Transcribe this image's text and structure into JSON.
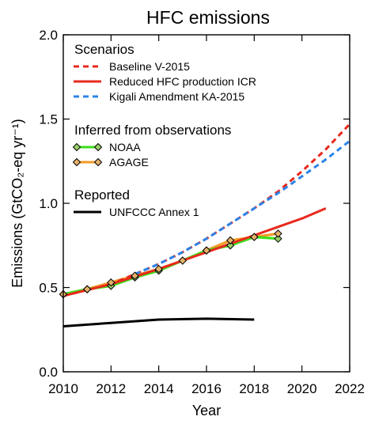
{
  "chart_data": {
    "type": "line",
    "title": "HFC emissions",
    "xlabel": "Year",
    "ylabel": "Emissions (GtCO₂-eq yr⁻¹)",
    "xlim": [
      2010,
      2022
    ],
    "ylim": [
      0.0,
      2.0
    ],
    "x_ticks": [
      "2010",
      "2012",
      "2014",
      "2016",
      "2018",
      "2020",
      "2022"
    ],
    "y_ticks": [
      "0.0",
      "0.5",
      "1.0",
      "1.5",
      "2.0"
    ],
    "grid": false,
    "legend_position": "top-left",
    "legend_groups": [
      {
        "heading": "Scenarios",
        "entries": [
          "baseline",
          "reduced",
          "kigali"
        ]
      },
      {
        "heading": "Inferred from observations",
        "entries": [
          "noaa",
          "agage"
        ]
      },
      {
        "heading": "Reported",
        "entries": [
          "unfccc"
        ]
      }
    ],
    "series": [
      {
        "id": "baseline",
        "name": "Baseline V-2015",
        "color": "#e8291c",
        "style": "dashed",
        "x": [
          2010,
          2012,
          2013,
          2014,
          2015,
          2016,
          2017,
          2018,
          2019,
          2020,
          2021,
          2022
        ],
        "y": [
          0.45,
          0.52,
          0.58,
          0.64,
          0.71,
          0.79,
          0.88,
          0.97,
          1.07,
          1.19,
          1.32,
          1.47
        ]
      },
      {
        "id": "reduced",
        "name": "Reduced HFC production ICR",
        "color": "#e8291c",
        "style": "solid",
        "x": [
          2010,
          2012,
          2014,
          2016,
          2018,
          2019,
          2020,
          2021
        ],
        "y": [
          0.45,
          0.52,
          0.61,
          0.71,
          0.81,
          0.86,
          0.91,
          0.97
        ]
      },
      {
        "id": "kigali",
        "name": "Kigali Amendment KA-2015",
        "color": "#2c84e8",
        "style": "dashed",
        "x": [
          2013,
          2014,
          2015,
          2016,
          2017,
          2018,
          2019,
          2020,
          2021,
          2022
        ],
        "y": [
          0.58,
          0.64,
          0.71,
          0.79,
          0.88,
          0.97,
          1.06,
          1.16,
          1.26,
          1.37
        ]
      },
      {
        "id": "noaa",
        "name": "NOAA",
        "color": "#3be01a",
        "marker_color": "#9bd06a",
        "style": "solid-markers",
        "x": [
          2010,
          2011,
          2012,
          2013,
          2014,
          2015,
          2016,
          2017,
          2018,
          2019
        ],
        "y": [
          0.46,
          0.49,
          0.51,
          0.56,
          0.6,
          0.66,
          0.72,
          0.75,
          0.8,
          0.79
        ]
      },
      {
        "id": "agage",
        "name": "AGAGE",
        "color": "#f39a24",
        "marker_color": "#e6b26a",
        "style": "solid-markers",
        "x": [
          2010,
          2011,
          2012,
          2013,
          2014,
          2015,
          2016,
          2017,
          2018,
          2019
        ],
        "y": [
          0.46,
          0.49,
          0.53,
          0.57,
          0.61,
          0.66,
          0.72,
          0.78,
          0.8,
          0.82
        ]
      },
      {
        "id": "unfccc",
        "name": "UNFCCC Annex 1",
        "color": "#000000",
        "style": "solid",
        "x": [
          2010,
          2012,
          2014,
          2016,
          2018
        ],
        "y": [
          0.27,
          0.29,
          0.31,
          0.315,
          0.31
        ]
      }
    ]
  }
}
